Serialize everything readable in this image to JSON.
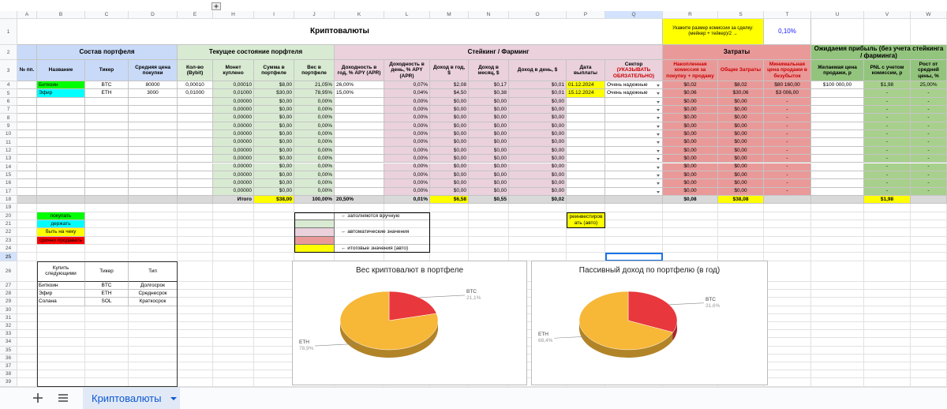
{
  "columns": [
    "A",
    "B",
    "C",
    "D",
    "E",
    "H",
    "I",
    "J",
    "K",
    "L",
    "M",
    "N",
    "O",
    "P",
    "Q",
    "R",
    "S",
    "T",
    "U",
    "V",
    "W"
  ],
  "row_numbers": [
    1,
    2,
    3,
    4,
    5,
    6,
    7,
    8,
    9,
    10,
    11,
    12,
    13,
    14,
    15,
    16,
    17,
    18,
    19,
    20,
    21,
    22,
    23,
    24,
    25,
    26,
    27,
    28,
    29,
    30,
    31,
    32,
    33,
    34,
    35,
    36,
    37,
    38,
    39
  ],
  "title": "Криптовалюты",
  "commission": {
    "prompt": "Укажите размер комиссии за сделку: (мейкер + тейкер)/2 →",
    "value": "0,10%"
  },
  "sections": [
    "Состав портфеля",
    "Текущее состояние порфтеля",
    "Стейкинг / Фарминг",
    "Затраты",
    "Ожидаемя прибыль (без учета стейкинга / фарминга)"
  ],
  "headers": {
    "A": "№ пп.",
    "B": "Название",
    "C": "Тикер",
    "D": "Средняя цена покупки",
    "E": "Кол-во (Bybit)",
    "H": "Монет куплено",
    "I": "Сумма в портфеле",
    "J": "Вес в портфеле",
    "K": "Доходность в год, % APY (APR)",
    "L": "Доходность в день, % APY (APR)",
    "M": "Доход в год, $",
    "N": "Доход в месяц, $",
    "O": "Доход в день, $",
    "P": "Дата выплаты",
    "Q": "Сектор",
    "R": "Накопленная комиссия за покупку + продажу",
    "S": "Общие Затраты",
    "T": "Минимальная цена продажи в безубыток",
    "U": "Желаемая цена продажи, р",
    "V": "PNL с учетом комиссии, р",
    "W": "Рост от средней цены, %"
  },
  "required_note": "(УКАЗЫВАТЬ ОБЯЗАТЕЛЬНО)",
  "rows": [
    {
      "B": "Биткоин",
      "C": "BTC",
      "D": "80000",
      "E": "0,00010",
      "H": "0,00010",
      "I": "$8,00",
      "J": "21,05%",
      "K": "26,00%",
      "L": "0,07%",
      "M": "$2,08",
      "N": "$0,17",
      "O": "$0,01",
      "P": "01.12.2024",
      "Q": "Очень надежные",
      "R": "$0,02",
      "S": "$8,02",
      "T": "$80 160,00",
      "U": "$100 000,00",
      "V": "$1,98",
      "W": "25,00%"
    },
    {
      "B": "Эфир",
      "C": "ETH",
      "D": "3000",
      "E": "0,01000",
      "H": "0,01000",
      "I": "$30,00",
      "J": "78,95%",
      "K": "15,00%",
      "L": "0,04%",
      "M": "$4,50",
      "N": "$0,38",
      "O": "$0,01",
      "P": "15.12.2024",
      "Q": "Очень надежные",
      "R": "$0,06",
      "S": "$30,06",
      "T": "$3 006,00",
      "V": "-",
      "W": "-"
    },
    {
      "H": "0,00000",
      "I": "$0,00",
      "J": "0,00%",
      "L": "0,00%",
      "M": "$0,00",
      "N": "$0,00",
      "O": "$0,00",
      "R": "$0,00",
      "S": "$0,00",
      "T": "-",
      "V": "-",
      "W": "-"
    },
    {
      "H": "0,00000",
      "I": "$0,00",
      "J": "0,00%",
      "L": "0,00%",
      "M": "$0,00",
      "N": "$0,00",
      "O": "$0,00",
      "R": "$0,00",
      "S": "$0,00",
      "T": "-",
      "V": "-",
      "W": "-"
    },
    {
      "H": "0,00000",
      "I": "$0,00",
      "J": "0,00%",
      "L": "0,00%",
      "M": "$0,00",
      "N": "$0,00",
      "O": "$0,00",
      "R": "$0,00",
      "S": "$0,00",
      "T": "-",
      "V": "-",
      "W": "-"
    },
    {
      "H": "0,00000",
      "I": "$0,00",
      "J": "0,00%",
      "L": "0,00%",
      "M": "$0,00",
      "N": "$0,00",
      "O": "$0,00",
      "R": "$0,00",
      "S": "$0,00",
      "T": "-",
      "V": "-",
      "W": "-"
    },
    {
      "H": "0,00000",
      "I": "$0,00",
      "J": "0,00%",
      "L": "0,00%",
      "M": "$0,00",
      "N": "$0,00",
      "O": "$0,00",
      "R": "$0,00",
      "S": "$0,00",
      "T": "-",
      "V": "-",
      "W": "-"
    },
    {
      "H": "0,00000",
      "I": "$0,00",
      "J": "0,00%",
      "L": "0,00%",
      "M": "$0,00",
      "N": "$0,00",
      "O": "$0,00",
      "R": "$0,00",
      "S": "$0,00",
      "T": "-",
      "V": "-",
      "W": "-"
    },
    {
      "H": "0,00000",
      "I": "$0,00",
      "J": "0,00%",
      "L": "0,00%",
      "M": "$0,00",
      "N": "$0,00",
      "O": "$0,00",
      "R": "$0,00",
      "S": "$0,00",
      "T": "-",
      "V": "-",
      "W": "-"
    },
    {
      "H": "0,00000",
      "I": "$0,00",
      "J": "0,00%",
      "L": "0,00%",
      "M": "$0,00",
      "N": "$0,00",
      "O": "$0,00",
      "R": "$0,00",
      "S": "$0,00",
      "T": "-",
      "V": "-",
      "W": "-"
    },
    {
      "H": "0,00000",
      "I": "$0,00",
      "J": "0,00%",
      "L": "0,00%",
      "M": "$0,00",
      "N": "$0,00",
      "O": "$0,00",
      "R": "$0,00",
      "S": "$0,00",
      "T": "-",
      "V": "-",
      "W": "-"
    },
    {
      "H": "0,00000",
      "I": "$0,00",
      "J": "0,00%",
      "L": "0,00%",
      "M": "$0,00",
      "N": "$0,00",
      "O": "$0,00",
      "R": "$0,00",
      "S": "$0,00",
      "T": "-",
      "V": "-",
      "W": "-"
    },
    {
      "H": "0,00000",
      "I": "$0,00",
      "J": "0,00%",
      "L": "0,00%",
      "M": "$0,00",
      "N": "$0,00",
      "O": "$0,00",
      "R": "$0,00",
      "S": "$0,00",
      "T": "-",
      "V": "-",
      "W": "-"
    },
    {
      "H": "0,00000",
      "I": "$0,00",
      "J": "0,00%",
      "L": "0,00%",
      "M": "$0,00",
      "N": "$0,00",
      "O": "$0,00",
      "R": "$0,00",
      "S": "$0,00",
      "T": "-",
      "V": "-",
      "W": "-"
    }
  ],
  "totals": {
    "H": "Итого",
    "I": "$38,00",
    "J": "100,00%",
    "K": "20,50%",
    "L": "0,01%",
    "M": "$6,58",
    "N": "$0,55",
    "O": "$0,02",
    "R": "$0,08",
    "S": "$38,08",
    "V": "$1,98"
  },
  "status_legend": [
    {
      "label": "покупать",
      "color": "#00ff00"
    },
    {
      "label": "держать",
      "color": "#00ffff"
    },
    {
      "label": "быть на чеку",
      "color": "#ffff00"
    },
    {
      "label": "срочно продавать",
      "color": "#ff0000"
    }
  ],
  "fill_legend": [
    "← заполняются вручную",
    "← автоматические значения",
    "← итоговые значения (авто)"
  ],
  "reinvest_note": "реинвестировать (авто)",
  "watchlist": {
    "headers": [
      "Купить следующими",
      "Тикер",
      "Тип"
    ],
    "rows": [
      [
        "Биткоин",
        "BTC",
        "Долгосрок"
      ],
      [
        "Эфир",
        "ETH",
        "Среднесрок"
      ],
      [
        "Солана",
        "SOL",
        "Краткосрок"
      ]
    ]
  },
  "sheet_tab": "Криптовалюты",
  "chart_data": [
    {
      "type": "pie",
      "title": "Вес криптовалют в портфеле",
      "categories": [
        "BTC",
        "ETH"
      ],
      "values": [
        21.1,
        78.9
      ],
      "value_labels": [
        "21,1%",
        "78,9%"
      ],
      "colors": [
        "#e8383d",
        "#f7b737"
      ]
    },
    {
      "type": "pie",
      "title": "Пассивный доход по портфелю (в год)",
      "categories": [
        "BTC",
        "ETH"
      ],
      "values": [
        31.6,
        68.4
      ],
      "value_labels": [
        "31,6%",
        "68,4%"
      ],
      "colors": [
        "#e8383d",
        "#f7b737"
      ]
    }
  ]
}
